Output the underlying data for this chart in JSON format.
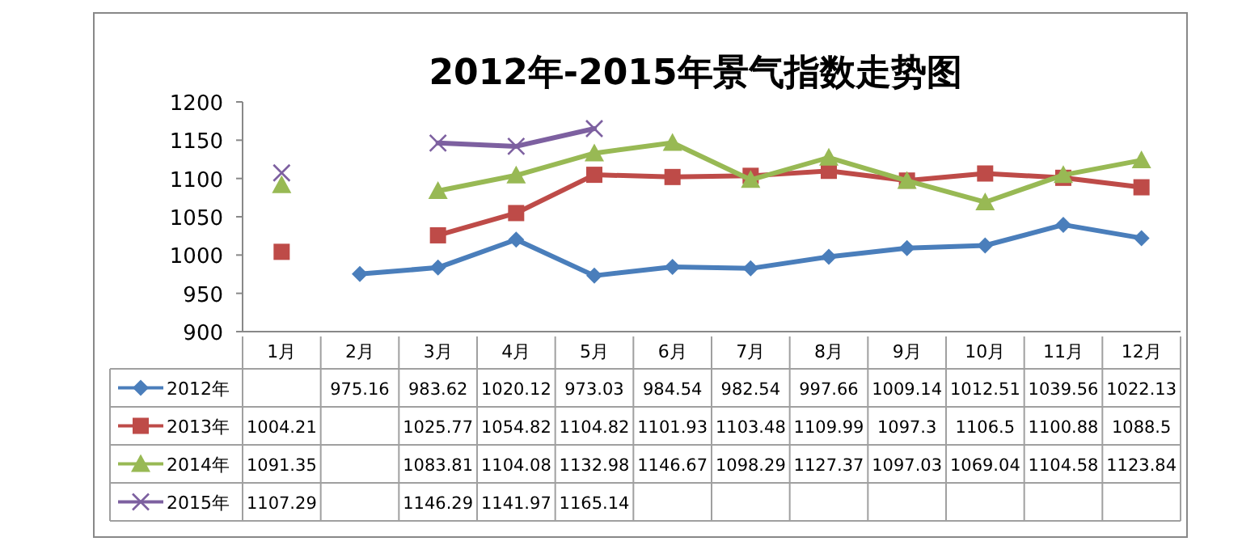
{
  "chart_data": {
    "type": "line",
    "title": "2012年-2015年景气指数走势图",
    "categories": [
      "1月",
      "2月",
      "3月",
      "4月",
      "5月",
      "6月",
      "7月",
      "8月",
      "9月",
      "10月",
      "11月",
      "12月"
    ],
    "series": [
      {
        "name": "2012年",
        "color": "#4a7ebb",
        "marker": "diamond",
        "values": [
          null,
          975.16,
          983.62,
          1020.12,
          973.03,
          984.54,
          982.54,
          997.66,
          1009.14,
          1012.51,
          1039.56,
          1022.13
        ]
      },
      {
        "name": "2013年",
        "color": "#be4b48",
        "marker": "square",
        "values": [
          1004.21,
          null,
          1025.77,
          1054.82,
          1104.82,
          1101.93,
          1103.48,
          1109.99,
          1097.3,
          1106.5,
          1100.88,
          1088.5
        ]
      },
      {
        "name": "2014年",
        "color": "#98b954",
        "marker": "triangle",
        "values": [
          1091.35,
          null,
          1083.81,
          1104.08,
          1132.98,
          1146.67,
          1098.29,
          1127.37,
          1097.03,
          1069.04,
          1104.58,
          1123.84
        ]
      },
      {
        "name": "2015年",
        "color": "#7d60a0",
        "marker": "cross",
        "values": [
          1107.29,
          null,
          1146.29,
          1141.97,
          1165.14,
          null,
          null,
          null,
          null,
          null,
          null,
          null
        ]
      }
    ],
    "ylim": [
      900,
      1200
    ],
    "yticks": [
      900,
      950,
      1000,
      1050,
      1100,
      1150,
      1200
    ],
    "grid": false,
    "legend": "bottom",
    "data_labels": true
  }
}
